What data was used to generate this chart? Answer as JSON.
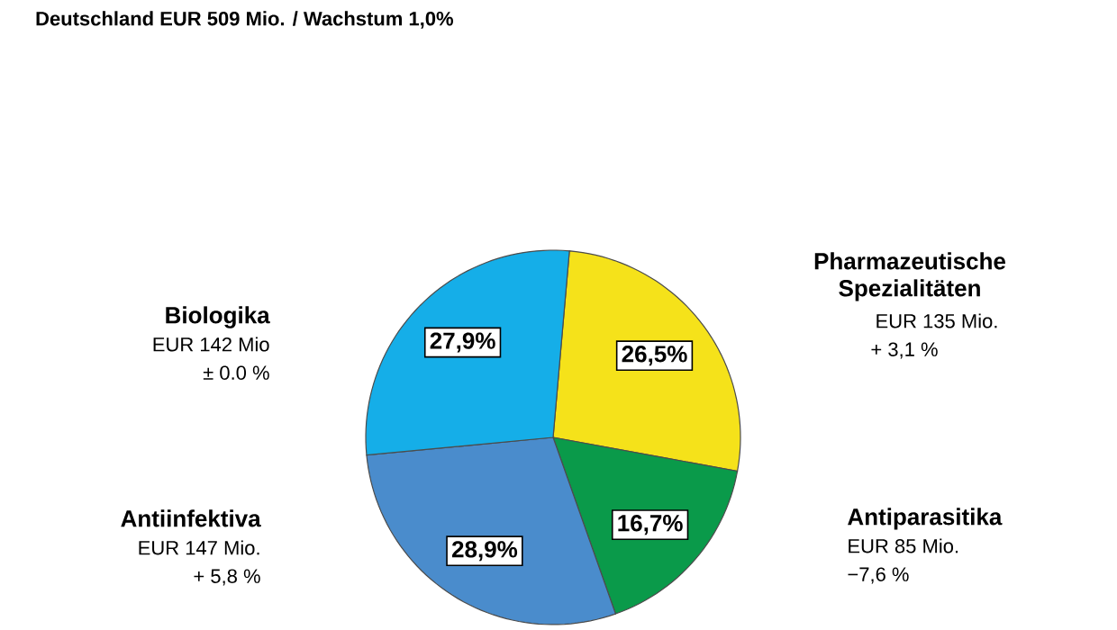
{
  "chart_data": {
    "type": "pie",
    "title": "Deutschland EUR 509 Mio. / Wachstum 1,0%",
    "categories": [
      "Pharmazeutische Spezialitäten",
      "Antiparasitika",
      "Antiinfektiva",
      "Biologika"
    ],
    "values": [
      26.5,
      16.7,
      28.9,
      27.9
    ],
    "value_labels": [
      "26,5%",
      "16,7%",
      "28,9%",
      "27,9%"
    ],
    "colors": [
      "#f5e21a",
      "#0a9a4a",
      "#4a8ccc",
      "#15aee8"
    ],
    "annotations": [
      "EUR 135 Mio.",
      "+ 3,1 %",
      "EUR 85 Mio.",
      "−7,6 %",
      "EUR 147 Mio.",
      "+ 5,8 %",
      "EUR 142 Mio",
      "± 0.0 %"
    ]
  }
}
